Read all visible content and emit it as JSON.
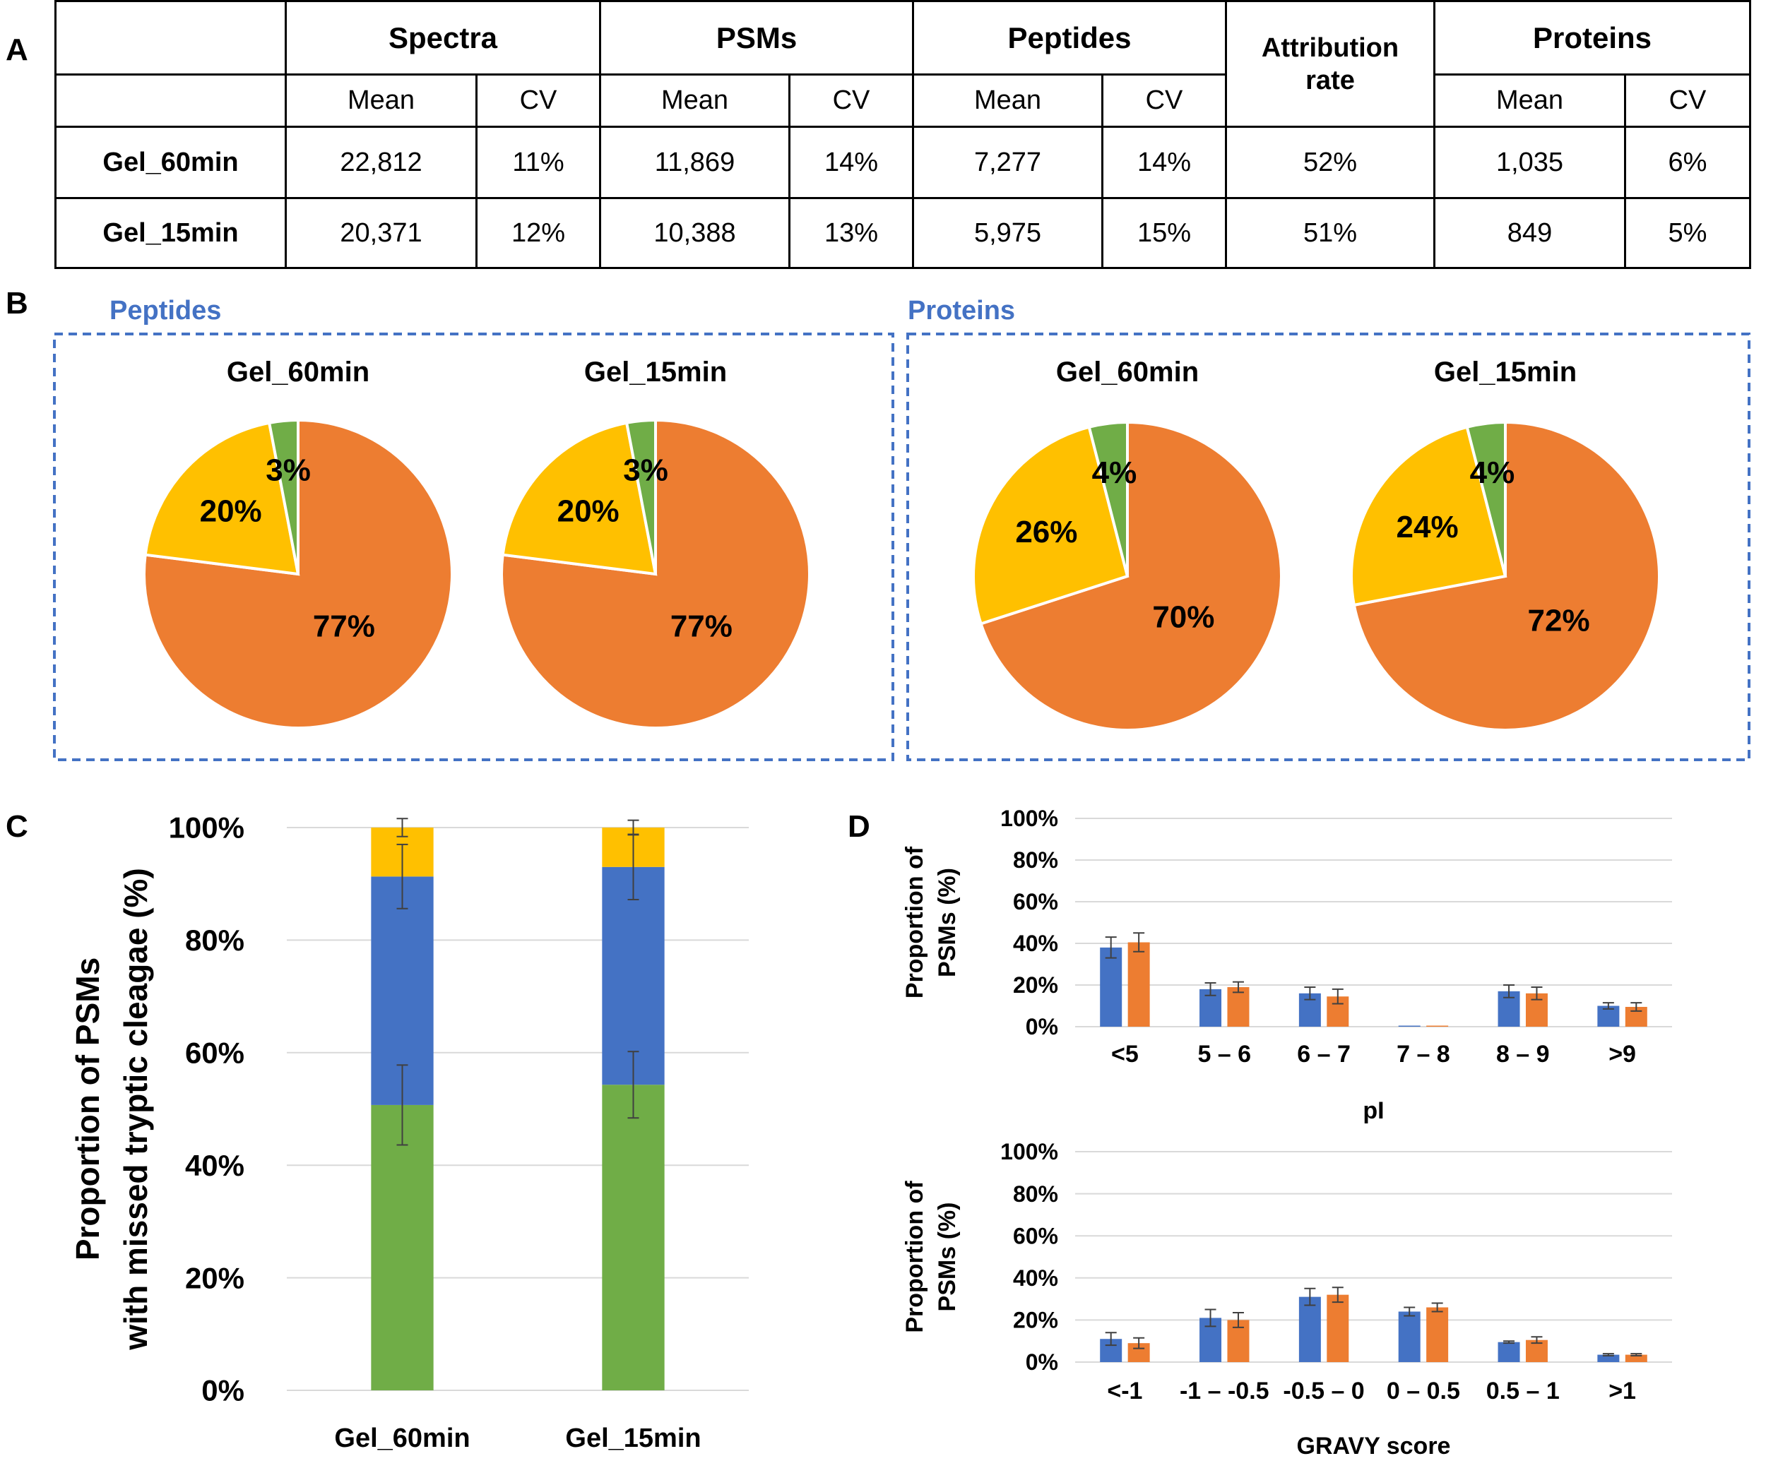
{
  "panel_labels": {
    "a": "A",
    "b": "B",
    "c": "C",
    "d": "D"
  },
  "table": {
    "groups": [
      "Spectra",
      "PSMs",
      "Peptides",
      "Attribution rate",
      "Proteins"
    ],
    "sub": [
      "Mean",
      "CV",
      "Mean",
      "CV",
      "Mean",
      "CV",
      "Mean",
      "CV"
    ],
    "rows": [
      {
        "name": "Gel_60min",
        "cells": [
          "22,812",
          "11%",
          "11,869",
          "14%",
          "7,277",
          "14%",
          "52%",
          "1,035",
          "6%"
        ]
      },
      {
        "name": "Gel_15min",
        "cells": [
          "20,371",
          "12%",
          "10,388",
          "13%",
          "5,975",
          "15%",
          "51%",
          "849",
          "5%"
        ]
      }
    ]
  },
  "colors": {
    "orange": "#ED7D31",
    "yellow": "#FFC000",
    "green": "#70AD47",
    "blue": "#4472C4",
    "box": "#4472C4"
  },
  "chart_data": [
    {
      "type": "pie",
      "group": "Peptides",
      "title": "Gel_60min",
      "slices": [
        {
          "value": 77,
          "label": "77%",
          "color": "#ED7D31"
        },
        {
          "value": 20,
          "label": "20%",
          "color": "#FFC000"
        },
        {
          "value": 3,
          "label": "3%",
          "color": "#70AD47"
        }
      ]
    },
    {
      "type": "pie",
      "group": "Peptides",
      "title": "Gel_15min",
      "slices": [
        {
          "value": 77,
          "label": "77%",
          "color": "#ED7D31"
        },
        {
          "value": 20,
          "label": "20%",
          "color": "#FFC000"
        },
        {
          "value": 3,
          "label": "3%",
          "color": "#70AD47"
        }
      ]
    },
    {
      "type": "pie",
      "group": "Proteins",
      "title": "Gel_60min",
      "slices": [
        {
          "value": 70,
          "label": "70%",
          "color": "#ED7D31"
        },
        {
          "value": 26,
          "label": "26%",
          "color": "#FFC000"
        },
        {
          "value": 4,
          "label": "4%",
          "color": "#70AD47"
        }
      ]
    },
    {
      "type": "pie",
      "group": "Proteins",
      "title": "Gel_15min",
      "slices": [
        {
          "value": 72,
          "label": "72%",
          "color": "#ED7D31"
        },
        {
          "value": 24,
          "label": "24%",
          "color": "#FFC000"
        },
        {
          "value": 4,
          "label": "4%",
          "color": "#70AD47"
        }
      ]
    },
    {
      "type": "bar",
      "stacked": true,
      "ylabel": [
        "Proportion of PSMs",
        "with missed tryptic cleagae (%)"
      ],
      "ylim": [
        0,
        100
      ],
      "yticks": [
        "0%",
        "20%",
        "40%",
        "60%",
        "80%",
        "100%"
      ],
      "grid": true,
      "categories": [
        "Gel_60min",
        "Gel_15min"
      ],
      "series": [
        {
          "color": "#70AD47",
          "values": [
            50.7,
            54.3
          ],
          "err": [
            7.1,
            5.9
          ]
        },
        {
          "color": "#4472C4",
          "values": [
            40.6,
            38.7
          ],
          "err": [
            5.7,
            5.8
          ]
        },
        {
          "color": "#FFC000",
          "values": [
            8.7,
            7.0
          ],
          "err": [
            1.6,
            1.3
          ]
        }
      ]
    },
    {
      "type": "bar",
      "xlabel": "pI",
      "ylabel": [
        "Proportion of",
        "PSMs (%)"
      ],
      "ylim": [
        0,
        100
      ],
      "yticks": [
        "0%",
        "20%",
        "40%",
        "60%",
        "80%",
        "100%"
      ],
      "grid": true,
      "categories": [
        "<5",
        "5 – 6",
        "6 – 7",
        "7 – 8",
        "8 – 9",
        ">9"
      ],
      "series": [
        {
          "color": "#4472C4",
          "values": [
            38,
            18,
            16,
            0.5,
            17,
            10
          ],
          "err": [
            5,
            3,
            3,
            0,
            3,
            1.5
          ]
        },
        {
          "color": "#ED7D31",
          "values": [
            40.5,
            19,
            14.5,
            0.5,
            16,
            9.5
          ],
          "err": [
            4.5,
            2.5,
            3.5,
            0,
            3,
            2
          ]
        }
      ]
    },
    {
      "type": "bar",
      "xlabel": "GRAVY score",
      "ylabel": [
        "Proportion of",
        "PSMs (%)"
      ],
      "ylim": [
        0,
        100
      ],
      "yticks": [
        "0%",
        "20%",
        "40%",
        "60%",
        "80%",
        "100%"
      ],
      "grid": true,
      "categories": [
        "<-1",
        "-1 – -0.5",
        "-0.5 – 0",
        "0 – 0.5",
        "0.5 – 1",
        ">1"
      ],
      "series": [
        {
          "color": "#4472C4",
          "values": [
            11,
            21,
            31,
            24,
            9.5,
            3.5
          ],
          "err": [
            3,
            4,
            4,
            2,
            0.5,
            0.5
          ]
        },
        {
          "color": "#ED7D31",
          "values": [
            9,
            20,
            32,
            26,
            10.5,
            3.5
          ],
          "err": [
            2.5,
            3.5,
            3.5,
            2,
            1.5,
            0.5
          ]
        }
      ]
    }
  ]
}
